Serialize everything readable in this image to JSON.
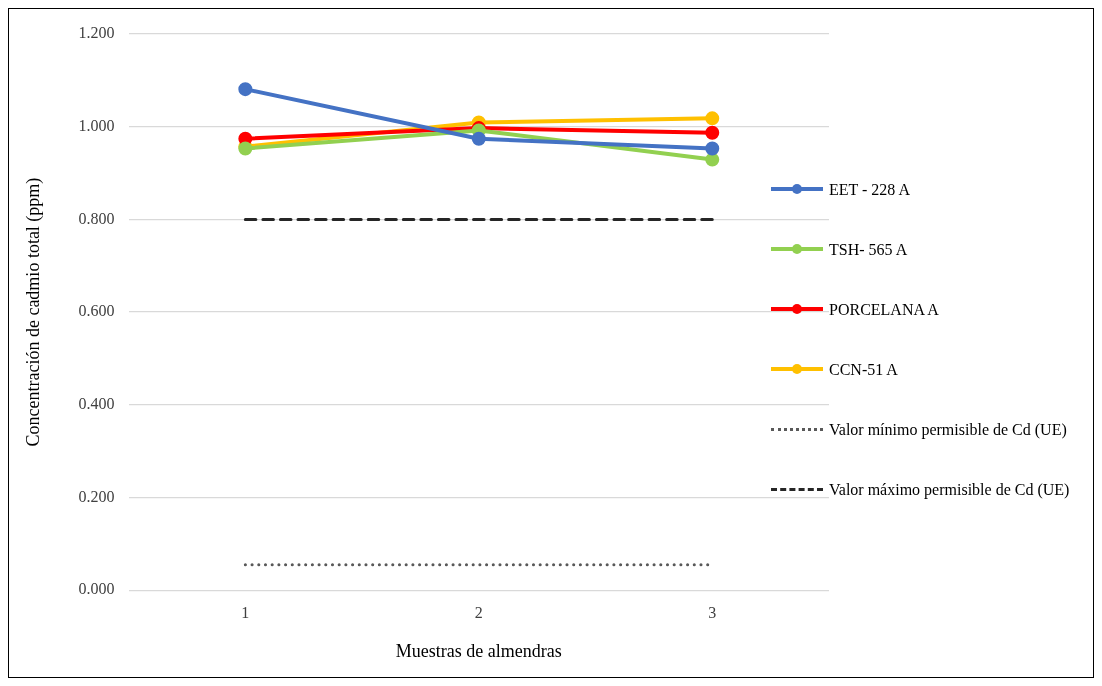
{
  "chart_data": {
    "type": "line",
    "xlabel": "Muestras de almendras",
    "ylabel": "Concentración de cadmio total (ppm)",
    "categories": [
      "1",
      "2",
      "3"
    ],
    "ylim": [
      0,
      1.2
    ],
    "yticks": [
      {
        "value": 0,
        "label": "0.000"
      },
      {
        "value": 0.2,
        "label": "0.200"
      },
      {
        "value": 0.4,
        "label": "0.400"
      },
      {
        "value": 0.6,
        "label": "0.600"
      },
      {
        "value": 0.8,
        "label": "0.800"
      },
      {
        "value": 1,
        "label": "1.000"
      },
      {
        "value": 1.2,
        "label": "1.200"
      }
    ],
    "grid": "y",
    "legend": "right",
    "series": [
      {
        "name": "EET - 228 A",
        "color": "#4472c4",
        "values": [
          1.081,
          0.974,
          0.953
        ],
        "marker": "circle",
        "line_style": "solid"
      },
      {
        "name": "TSH- 565 A",
        "color": "#92d050",
        "values": [
          0.953,
          0.992,
          0.929
        ],
        "marker": "circle",
        "line_style": "solid"
      },
      {
        "name": "PORCELANA A",
        "color": "#ff0000",
        "values": [
          0.974,
          0.997,
          0.987
        ],
        "marker": "circle",
        "line_style": "solid"
      },
      {
        "name": "CCN-51 A",
        "color": "#ffc000",
        "values": [
          0.957,
          1.009,
          1.018
        ],
        "marker": "circle",
        "line_style": "solid"
      },
      {
        "name": "Valor mínimo permisible de Cd (UE)",
        "color": "#595959",
        "values": [
          0.055,
          0.055,
          0.055
        ],
        "marker": "none",
        "line_style": "dotted"
      },
      {
        "name": "Valor máximo permisible de Cd (UE)",
        "color": "#262626",
        "values": [
          0.8,
          0.8,
          0.8
        ],
        "marker": "none",
        "line_style": "dashed"
      }
    ]
  }
}
